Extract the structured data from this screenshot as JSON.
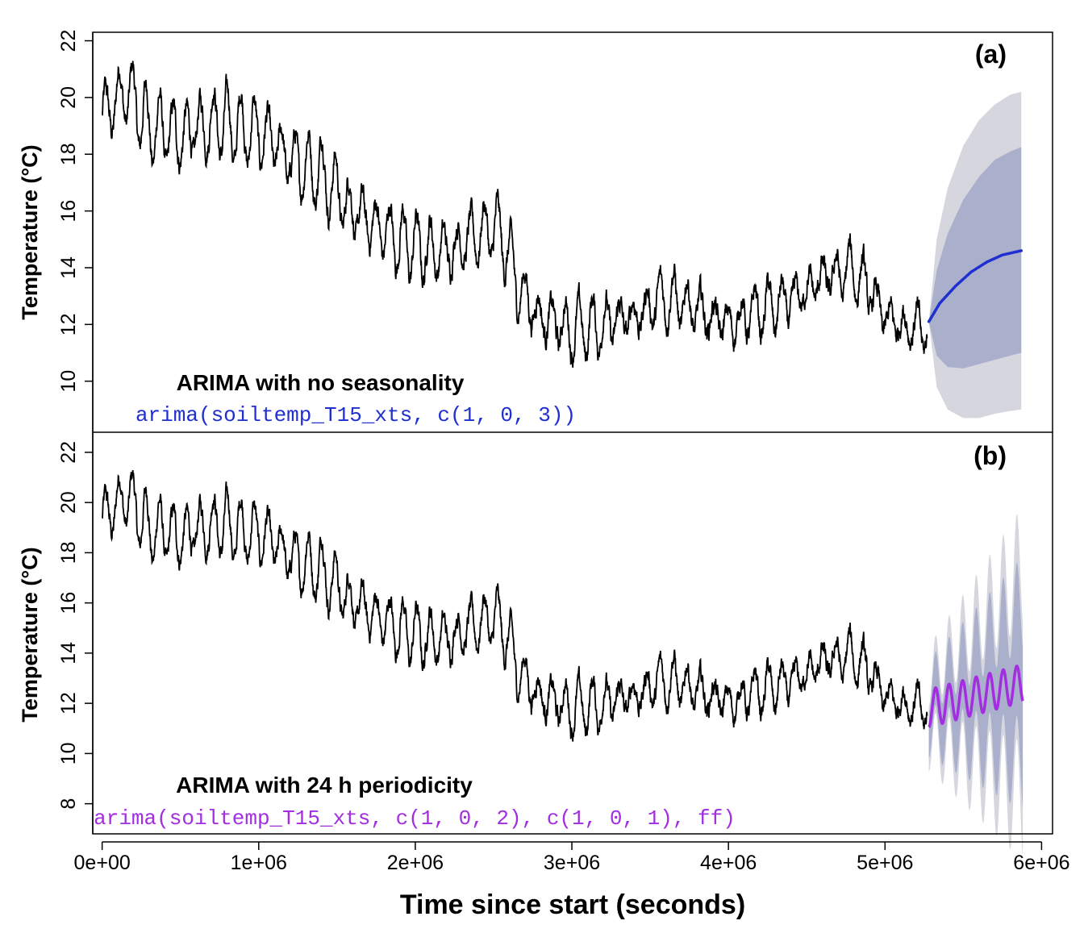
{
  "chart_data": [
    {
      "type": "line",
      "panel_label": "(a)",
      "annotation_title": "ARIMA with no seasonality",
      "annotation_code": "arima(soiltemp_T15_xts, c(1, 0, 3))",
      "ylabel": "Temperature (°C)",
      "xlabel": "",
      "xlim": [
        -60000,
        6070000
      ],
      "ylim": [
        8.2,
        22.3
      ],
      "yticks": [
        "10",
        "12",
        "14",
        "16",
        "18",
        "20",
        "22"
      ],
      "grid": false,
      "legend": "none",
      "forecast_color": "#1f2fd0",
      "band_outer_color": "#d5d6de",
      "band_inner_color": "#aab0cc",
      "observed": {
        "x_start": 0,
        "x_end": 5270000,
        "anchors": [
          [
            0,
            19.3
          ],
          [
            150000,
            20.3
          ],
          [
            300000,
            19.0
          ],
          [
            500000,
            18.6
          ],
          [
            700000,
            19.2
          ],
          [
            900000,
            18.9
          ],
          [
            1050000,
            18.6
          ],
          [
            1200000,
            17.8
          ],
          [
            1400000,
            17.4
          ],
          [
            1600000,
            16.0
          ],
          [
            1800000,
            15.3
          ],
          [
            2000000,
            14.7
          ],
          [
            2200000,
            14.6
          ],
          [
            2400000,
            15.2
          ],
          [
            2500000,
            15.4
          ],
          [
            2580000,
            14.8
          ],
          [
            2650000,
            13.4
          ],
          [
            2800000,
            12.3
          ],
          [
            3000000,
            11.8
          ],
          [
            3200000,
            12.0
          ],
          [
            3400000,
            12.3
          ],
          [
            3600000,
            13.0
          ],
          [
            3800000,
            12.5
          ],
          [
            4000000,
            12.0
          ],
          [
            4200000,
            12.5
          ],
          [
            4400000,
            12.8
          ],
          [
            4600000,
            13.6
          ],
          [
            4800000,
            13.9
          ],
          [
            4900000,
            13.2
          ],
          [
            5000000,
            12.2
          ],
          [
            5270000,
            11.8
          ]
        ],
        "daily_amplitude": 1.0
      },
      "forecast": {
        "x_start": 5280000,
        "x_end": 5870000,
        "mean": [
          [
            5280000,
            12.1
          ],
          [
            5350000,
            12.75
          ],
          [
            5450000,
            13.35
          ],
          [
            5550000,
            13.85
          ],
          [
            5650000,
            14.2
          ],
          [
            5750000,
            14.45
          ],
          [
            5870000,
            14.6
          ]
        ],
        "outer_upper": [
          [
            5280000,
            12.1
          ],
          [
            5330000,
            15.0
          ],
          [
            5400000,
            16.8
          ],
          [
            5500000,
            18.3
          ],
          [
            5600000,
            19.2
          ],
          [
            5700000,
            19.75
          ],
          [
            5800000,
            20.1
          ],
          [
            5870000,
            20.2
          ]
        ],
        "outer_lower": [
          [
            5280000,
            12.1
          ],
          [
            5330000,
            9.8
          ],
          [
            5400000,
            9.0
          ],
          [
            5500000,
            8.7
          ],
          [
            5600000,
            8.7
          ],
          [
            5700000,
            8.85
          ],
          [
            5800000,
            8.95
          ],
          [
            5870000,
            9.0
          ]
        ],
        "inner_upper": [
          [
            5280000,
            12.1
          ],
          [
            5330000,
            13.9
          ],
          [
            5400000,
            15.2
          ],
          [
            5500000,
            16.4
          ],
          [
            5600000,
            17.2
          ],
          [
            5700000,
            17.8
          ],
          [
            5800000,
            18.1
          ],
          [
            5870000,
            18.25
          ]
        ],
        "inner_lower": [
          [
            5280000,
            12.1
          ],
          [
            5330000,
            10.9
          ],
          [
            5400000,
            10.5
          ],
          [
            5500000,
            10.45
          ],
          [
            5600000,
            10.6
          ],
          [
            5700000,
            10.75
          ],
          [
            5800000,
            10.9
          ],
          [
            5870000,
            11.0
          ]
        ]
      }
    },
    {
      "type": "line",
      "panel_label": "(b)",
      "annotation_title": "ARIMA with 24 h periodicity",
      "annotation_code": "arima(soiltemp_T15_xts, c(1, 0, 2), c(1, 0, 1), ff)",
      "ylabel": "Temperature (°C)",
      "xlabel": "Time since start (seconds)",
      "xlim": [
        -60000,
        6070000
      ],
      "ylim": [
        6.8,
        22.8
      ],
      "yticks": [
        "8",
        "10",
        "12",
        "14",
        "16",
        "18",
        "20",
        "22"
      ],
      "xticks": [
        "0e+00",
        "1e+06",
        "2e+06",
        "3e+06",
        "4e+06",
        "5e+06",
        "6e+06"
      ],
      "grid": false,
      "legend": "none",
      "forecast_color": "#a22ee0",
      "band_outer_color": "#d5d6de",
      "band_inner_color": "#aab0cc",
      "forecast": {
        "x_start": 5280000,
        "x_end": 5880000,
        "mean_trend": [
          [
            5280000,
            11.8
          ],
          [
            5880000,
            12.8
          ]
        ],
        "mean_amplitude": 0.75,
        "period_seconds": 86400,
        "outer_halfwidth": [
          [
            5280000,
            1.3
          ],
          [
            5880000,
            4.7
          ]
        ],
        "inner_halfwidth": [
          [
            5280000,
            0.9
          ],
          [
            5880000,
            3.2
          ]
        ]
      }
    }
  ]
}
